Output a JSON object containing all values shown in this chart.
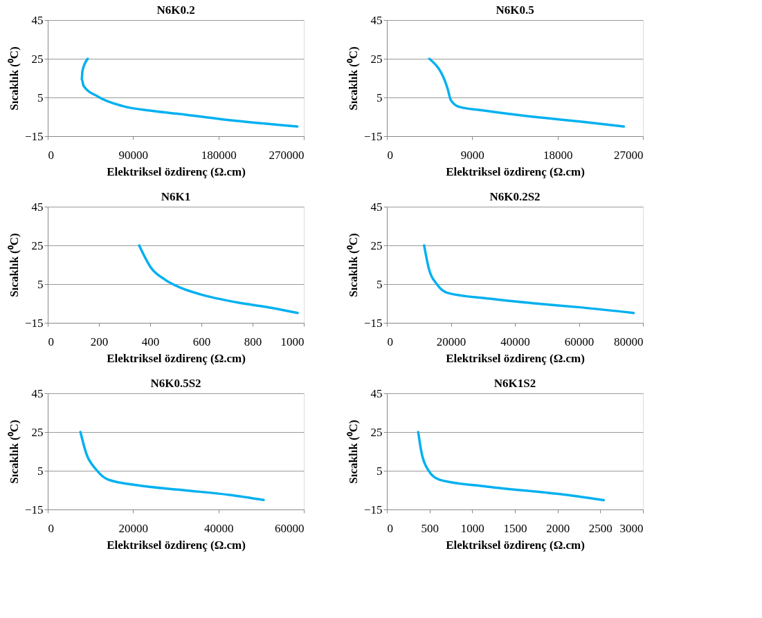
{
  "chart_data": [
    {
      "type": "line",
      "title": "N6K0.2",
      "xlabel": "Elektriksel özdirenç (Ω.cm)",
      "ylabel": "Sıcaklık (⁰C)",
      "xlim": [
        0,
        270000
      ],
      "xticks": [
        0,
        90000,
        180000,
        270000
      ],
      "ylim": [
        -15,
        45
      ],
      "yticks": [
        -15,
        5,
        25,
        45
      ],
      "grid": "y",
      "series": [
        {
          "color": "#00b0f0",
          "x": [
            42200,
            36600,
            35800,
            37900,
            53200,
            78800,
            109500,
            145400,
            196600,
            263100
          ],
          "values": [
            25,
            18.8,
            14.5,
            10.9,
            5.4,
            0.6,
            -1.9,
            -3.9,
            -7,
            -10
          ]
        }
      ]
    },
    {
      "type": "line",
      "title": "N6K0.5",
      "xlabel": "Elektriksel özdirenç (Ω.cm)",
      "ylabel": "Sıcaklık (⁰C)",
      "xlim": [
        0,
        27000
      ],
      "xticks": [
        0,
        9000,
        18000,
        27000
      ],
      "ylim": [
        -15,
        45
      ],
      "yticks": [
        -15,
        5,
        25,
        45
      ],
      "grid": "y",
      "series": [
        {
          "color": "#00b0f0",
          "x": [
            4480,
            6380,
            6750,
            7590,
            10150,
            15490,
            20350,
            24980
          ],
          "values": [
            25,
            9.9,
            3.6,
            0.2,
            -1.7,
            -5,
            -7.4,
            -10
          ]
        }
      ]
    },
    {
      "type": "line",
      "title": "N6K1",
      "xlabel": "Elektriksel özdirenç (Ω.cm)",
      "ylabel": "Sıcaklık (⁰C)",
      "xlim": [
        0,
        1000
      ],
      "xticks": [
        0,
        200,
        400,
        600,
        800,
        1000
      ],
      "ylim": [
        -15,
        45
      ],
      "yticks": [
        -15,
        5,
        25,
        45
      ],
      "grid": "y",
      "series": [
        {
          "color": "#00b0f0",
          "x": [
            357,
            402,
            458,
            523,
            597,
            737,
            876,
            976
          ],
          "values": [
            25,
            13.7,
            7.3,
            2.9,
            -0.3,
            -4.4,
            -7.3,
            -9.9
          ]
        }
      ]
    },
    {
      "type": "line",
      "title": "N6K0.2S2",
      "xlabel": "Elektriksel özdirenç (Ω.cm)",
      "ylabel": "Sıcaklık (⁰C)",
      "xlim": [
        0,
        80000
      ],
      "xticks": [
        0,
        20000,
        40000,
        60000,
        80000
      ],
      "ylim": [
        -15,
        45
      ],
      "yticks": [
        -15,
        5,
        25,
        45
      ],
      "grid": "y",
      "series": [
        {
          "color": "#00b0f0",
          "x": [
            11640,
            13090,
            15640,
            18910,
            32000,
            46550,
            61090,
            77090
          ],
          "values": [
            25,
            13.1,
            4.9,
            0.5,
            -2.5,
            -5,
            -7.1,
            -9.9
          ]
        }
      ]
    },
    {
      "type": "line",
      "title": "N6K0.5S2",
      "xlabel": "Elektriksel özdirenç (Ω.cm)",
      "ylabel": "Sıcaklık (⁰C)",
      "xlim": [
        0,
        60000
      ],
      "xticks": [
        0,
        20000,
        40000,
        60000
      ],
      "ylim": [
        -15,
        45
      ],
      "yticks": [
        -15,
        5,
        25,
        45
      ],
      "grid": "y",
      "series": [
        {
          "color": "#00b0f0",
          "x": [
            7660,
            9030,
            11270,
            14090,
            20780,
            31720,
            42660,
            50590
          ],
          "values": [
            25,
            13.9,
            5.8,
            0.5,
            -2.4,
            -5,
            -7.5,
            -10.1
          ]
        }
      ]
    },
    {
      "type": "line",
      "title": "N6K1S2",
      "xlabel": "Elektriksel özdirenç (Ω.cm)",
      "ylabel": "Sıcaklık (⁰C)",
      "xlim": [
        0,
        3000
      ],
      "xticks": [
        0,
        500,
        1000,
        1500,
        2000,
        2500,
        3000
      ],
      "ylim": [
        -15,
        45
      ],
      "yticks": [
        -15,
        5,
        25,
        45
      ],
      "grid": "y",
      "series": [
        {
          "color": "#00b0f0",
          "x": [
            367,
            404,
            488,
            614,
            1175,
            2015,
            2540
          ],
          "values": [
            25,
            14.8,
            5.1,
            0.4,
            -3.2,
            -7,
            -10.2
          ]
        }
      ]
    }
  ]
}
